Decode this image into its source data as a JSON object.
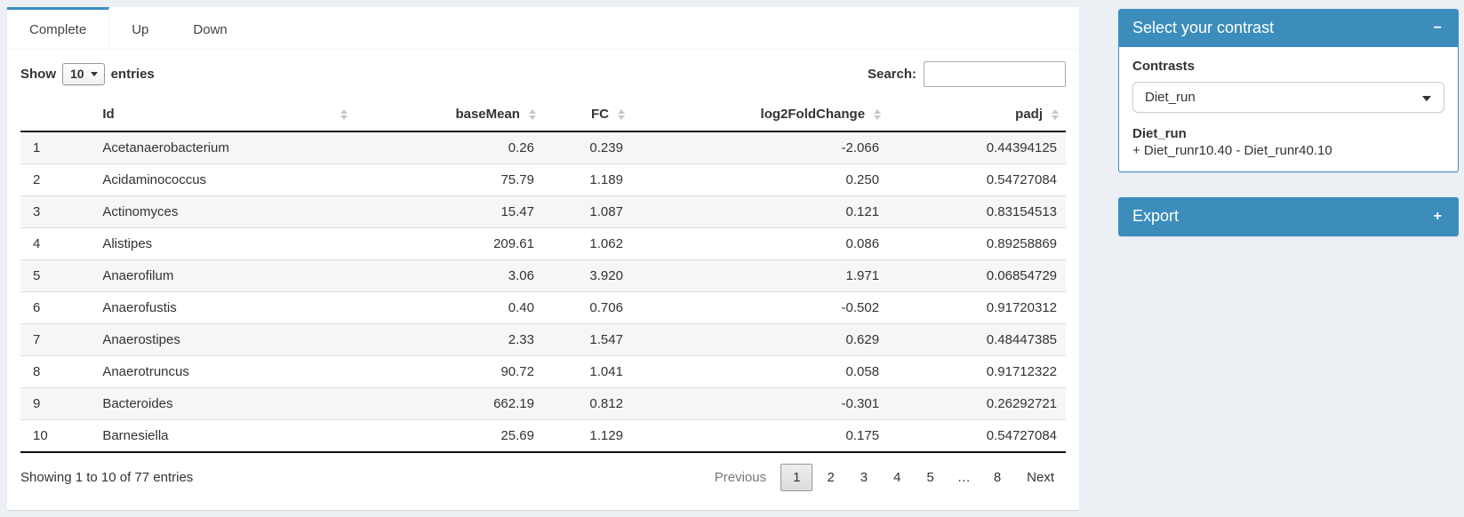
{
  "colors": {
    "accent": "#3c8dbc",
    "page_bg": "#ecf0f5"
  },
  "tabs": [
    {
      "label": "Complete",
      "active": true
    },
    {
      "label": "Up",
      "active": false
    },
    {
      "label": "Down",
      "active": false
    }
  ],
  "length_control": {
    "prefix": "Show",
    "value": "10",
    "suffix": "entries"
  },
  "search": {
    "label": "Search:",
    "value": ""
  },
  "table": {
    "columns": [
      "",
      "Id",
      "baseMean",
      "FC",
      "log2FoldChange",
      "padj"
    ],
    "rows": [
      {
        "index": "1",
        "id": "Acetanaerobacterium",
        "baseMean": "0.26",
        "fc": "0.239",
        "log2fc": "-2.066",
        "padj": "0.44394125"
      },
      {
        "index": "2",
        "id": "Acidaminococcus",
        "baseMean": "75.79",
        "fc": "1.189",
        "log2fc": "0.250",
        "padj": "0.54727084"
      },
      {
        "index": "3",
        "id": "Actinomyces",
        "baseMean": "15.47",
        "fc": "1.087",
        "log2fc": "0.121",
        "padj": "0.83154513"
      },
      {
        "index": "4",
        "id": "Alistipes",
        "baseMean": "209.61",
        "fc": "1.062",
        "log2fc": "0.086",
        "padj": "0.89258869"
      },
      {
        "index": "5",
        "id": "Anaerofilum",
        "baseMean": "3.06",
        "fc": "3.920",
        "log2fc": "1.971",
        "padj": "0.06854729"
      },
      {
        "index": "6",
        "id": "Anaerofustis",
        "baseMean": "0.40",
        "fc": "0.706",
        "log2fc": "-0.502",
        "padj": "0.91720312"
      },
      {
        "index": "7",
        "id": "Anaerostipes",
        "baseMean": "2.33",
        "fc": "1.547",
        "log2fc": "0.629",
        "padj": "0.48447385"
      },
      {
        "index": "8",
        "id": "Anaerotruncus",
        "baseMean": "90.72",
        "fc": "1.041",
        "log2fc": "0.058",
        "padj": "0.91712322"
      },
      {
        "index": "9",
        "id": "Bacteroides",
        "baseMean": "662.19",
        "fc": "0.812",
        "log2fc": "-0.301",
        "padj": "0.26292721"
      },
      {
        "index": "10",
        "id": "Barnesiella",
        "baseMean": "25.69",
        "fc": "1.129",
        "log2fc": "0.175",
        "padj": "0.54727084"
      }
    ]
  },
  "footer": {
    "info": "Showing 1 to 10 of 77 entries",
    "pagination": [
      {
        "label": "Previous",
        "state": "disabled"
      },
      {
        "label": "1",
        "state": "active"
      },
      {
        "label": "2",
        "state": ""
      },
      {
        "label": "3",
        "state": ""
      },
      {
        "label": "4",
        "state": ""
      },
      {
        "label": "5",
        "state": ""
      },
      {
        "label": "…",
        "state": "ellipsis"
      },
      {
        "label": "8",
        "state": ""
      },
      {
        "label": "Next",
        "state": ""
      }
    ]
  },
  "panels": {
    "contrast": {
      "title": "Select your contrast",
      "collapse_icon": "−",
      "contrasts_label": "Contrasts",
      "selected_contrast": "Diet_run",
      "detail_title": "Diet_run",
      "detail_text": "+ Diet_runr10.40 - Diet_runr40.10"
    },
    "export": {
      "title": "Export",
      "collapse_icon": "+"
    }
  }
}
